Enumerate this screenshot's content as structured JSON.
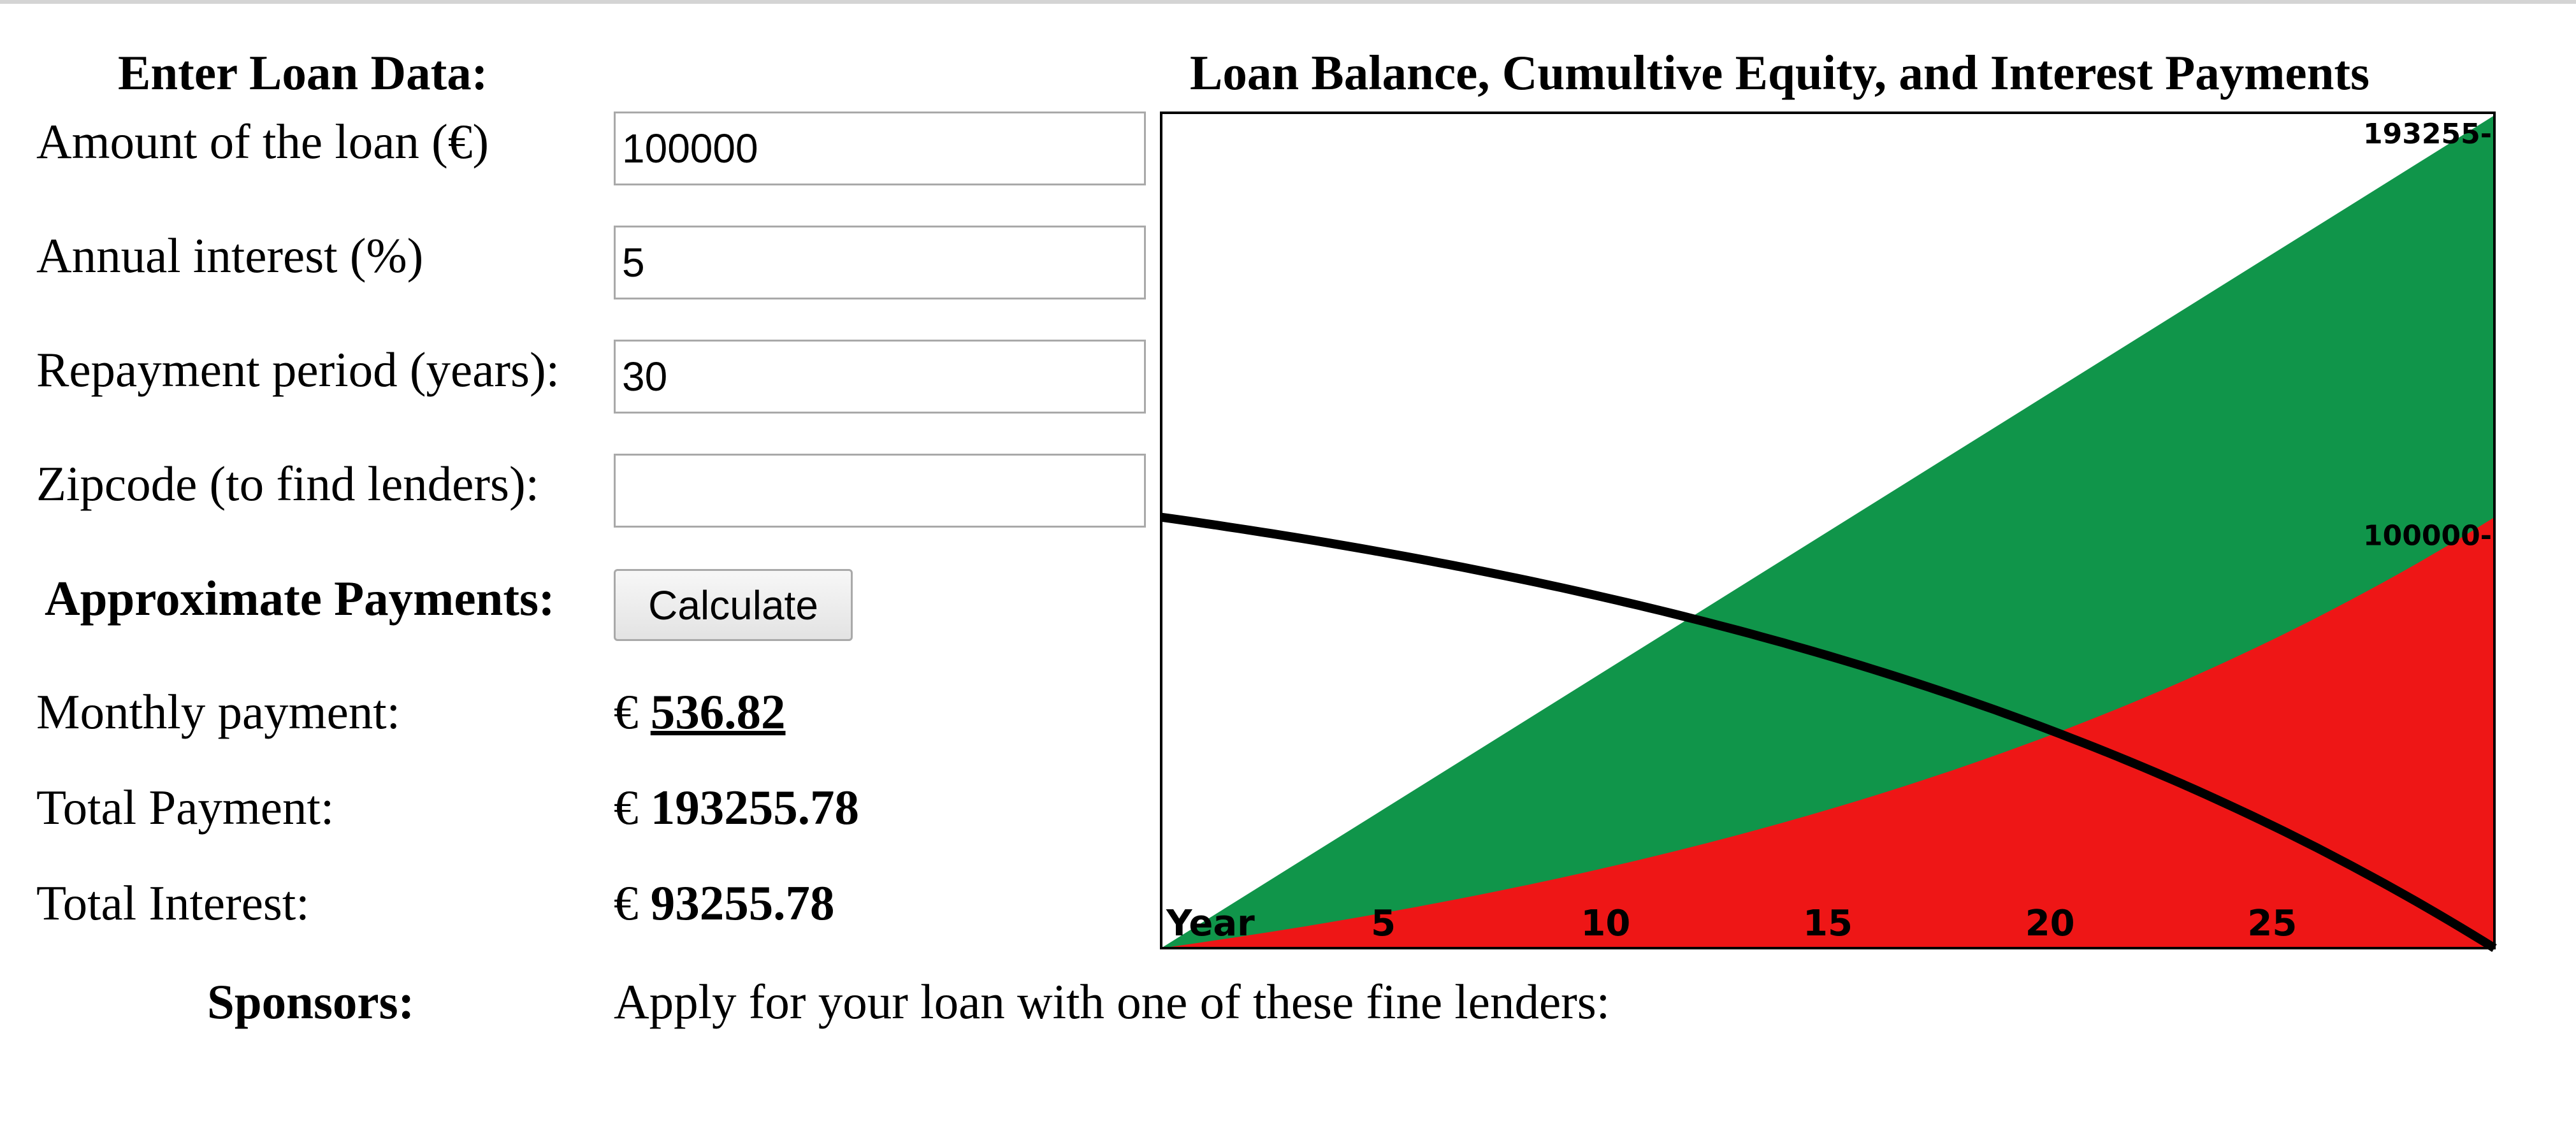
{
  "form": {
    "heading": "Enter Loan Data:",
    "fields": [
      {
        "label": "Amount of the loan (€)",
        "value": "100000",
        "placeholder": ""
      },
      {
        "label": "Annual interest (%)",
        "value": "5",
        "placeholder": ""
      },
      {
        "label": "Repayment period (years):",
        "value": "30",
        "placeholder": ""
      },
      {
        "label": "Zipcode (to find lenders):",
        "value": "",
        "placeholder": ""
      }
    ],
    "calculate_label": "Calculate"
  },
  "results": {
    "heading": "Approximate Payments:",
    "monthly_label": "Monthly payment:",
    "currency": "€",
    "monthly_value": "536.82",
    "total_payment_label": "Total Payment:",
    "total_payment_value": "193255.78",
    "total_interest_label": "Total Interest:",
    "total_interest_value": "93255.78"
  },
  "sponsors": {
    "label": "Sponsors:",
    "text": "Apply for your loan with one of these fine lenders:"
  },
  "chart_data": {
    "type": "area",
    "title": "Loan Balance, Cumultive Equity, and Interest Payments",
    "xlabel": "Year",
    "xlim": [
      0,
      30
    ],
    "ylim": [
      0,
      193255.78
    ],
    "x_ticks": [
      5,
      10,
      15,
      20,
      25
    ],
    "y_ticks": [
      {
        "value": 193255,
        "label": "193255"
      },
      {
        "value": 100000,
        "label": "100000"
      }
    ],
    "loan": {
      "principal": 100000,
      "annual_rate_percent": 5,
      "years": 30,
      "monthly_payment": 536.82
    },
    "series": [
      {
        "role": "total_paid",
        "color": "#10954a",
        "style": "area",
        "x": [
          0,
          30
        ],
        "y": [
          0,
          193255.78
        ]
      },
      {
        "role": "equity",
        "color": "#ee1616",
        "style": "area",
        "x": [
          0,
          5,
          10,
          15,
          20,
          25,
          30
        ],
        "y": [
          0,
          8175,
          22790,
          41780,
          63730,
          88735,
          100000
        ]
      },
      {
        "role": "balance",
        "color": "#000000",
        "style": "line",
        "x": [
          0,
          5,
          10,
          15,
          20,
          25,
          30
        ],
        "y": [
          100000,
          91825,
          77210,
          58220,
          36270,
          11265,
          0
        ]
      }
    ],
    "colors": {
      "total": "#10954a",
      "equity": "#ee1616",
      "balance": "#000000",
      "frame": "#000000"
    }
  }
}
